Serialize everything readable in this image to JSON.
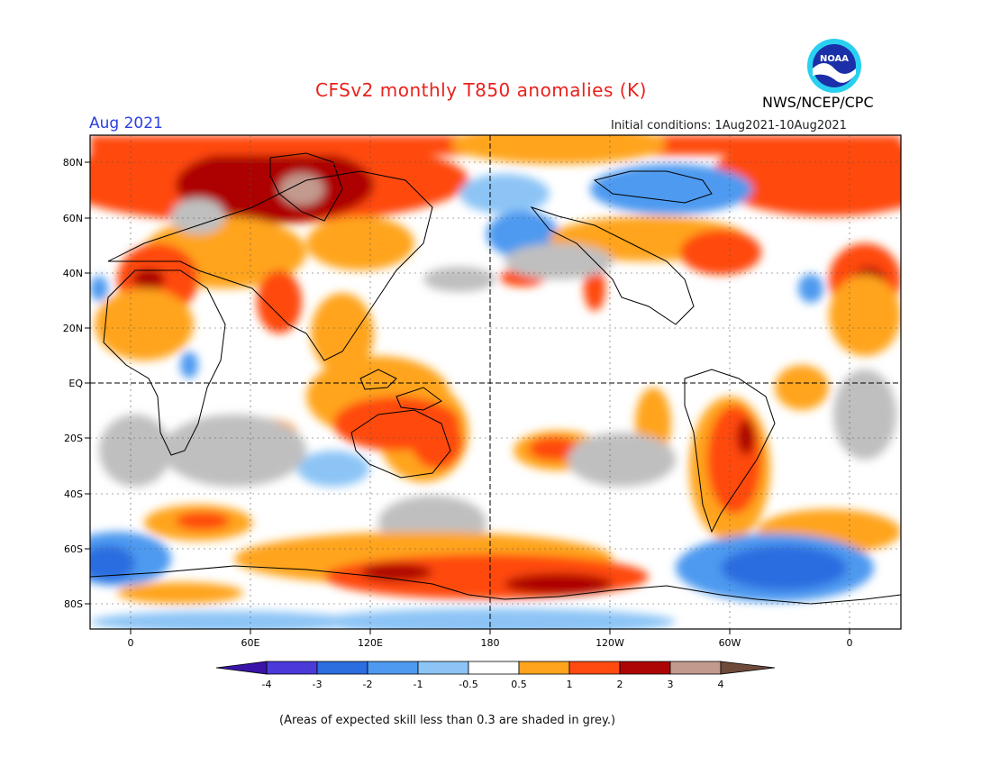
{
  "title": "CFSv2 monthly T850 anomalies (K)",
  "month": "Aug 2021",
  "initial_conditions": "Initial conditions: 1Aug2021-10Aug2021",
  "agency": "NWS/NCEP/CPC",
  "logo": {
    "icon": "noaa-logo-icon",
    "text": "NOAA"
  },
  "footnote": "(Areas of expected skill less than 0.3 are shaded in grey.)",
  "colors": {
    "c_m4": "#3a14a8",
    "c_m3": "#4a3ad8",
    "c_m2": "#2c6de0",
    "c_m1": "#4d9af0",
    "c_m05": "#8cc4f6",
    "neutral": "#ffffff",
    "c_05": "#ffa41c",
    "c_1": "#ff4a10",
    "c_2": "#ad0505",
    "c_3": "#c29a8e",
    "c_4": "#6e4a3a",
    "grey": "#bfbfbf"
  },
  "map": {
    "lat_labels": [
      "80N",
      "60N",
      "40N",
      "20N",
      "EQ",
      "20S",
      "40S",
      "60S",
      "80S"
    ],
    "lon_labels": [
      "0",
      "60E",
      "120E",
      "180",
      "120W",
      "60W",
      "0"
    ]
  },
  "colorbar": {
    "ticks": [
      "-4",
      "-3",
      "-2",
      "-1",
      "-0.5",
      "0.5",
      "1",
      "2",
      "3",
      "4"
    ]
  }
}
